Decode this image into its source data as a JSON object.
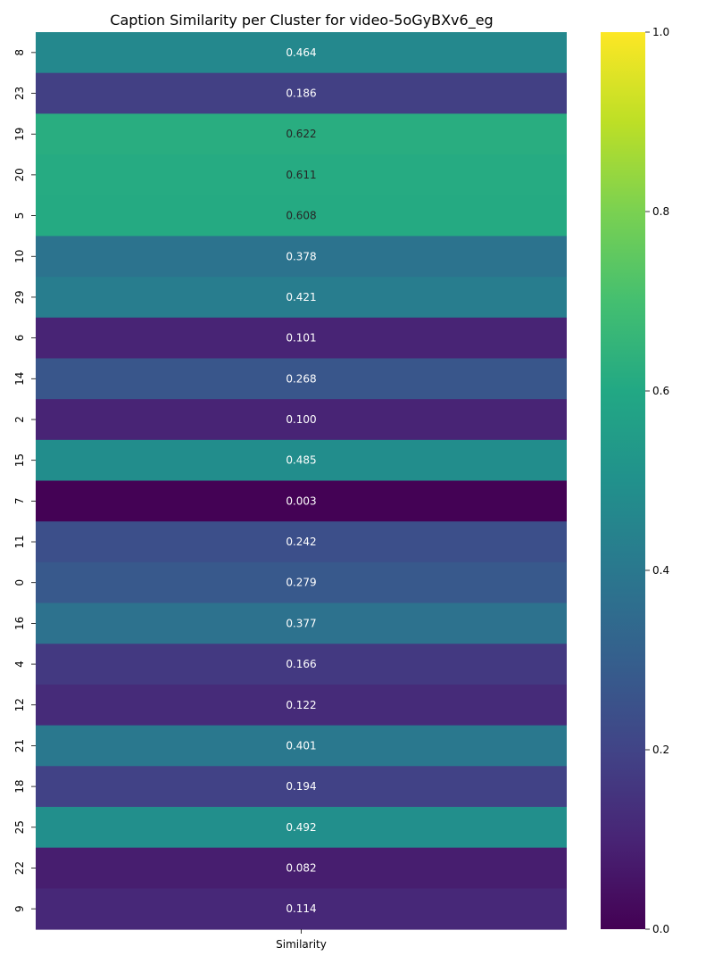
{
  "chart_data": {
    "type": "heatmap",
    "title": "Caption Similarity per Cluster for video-5oGyBXv6_eg",
    "xlabel": "",
    "ylabel": "",
    "columns": [
      "Similarity"
    ],
    "rows": [
      "8",
      "23",
      "19",
      "20",
      "5",
      "10",
      "29",
      "6",
      "14",
      "2",
      "15",
      "7",
      "11",
      "0",
      "16",
      "4",
      "12",
      "21",
      "18",
      "25",
      "22",
      "9"
    ],
    "values": [
      0.464,
      0.186,
      0.622,
      0.611,
      0.608,
      0.378,
      0.421,
      0.101,
      0.268,
      0.1,
      0.485,
      0.003,
      0.242,
      0.279,
      0.377,
      0.166,
      0.122,
      0.401,
      0.194,
      0.492,
      0.082,
      0.114
    ],
    "value_labels": [
      "0.464",
      "0.186",
      "0.622",
      "0.611",
      "0.608",
      "0.378",
      "0.421",
      "0.101",
      "0.268",
      "0.100",
      "0.485",
      "0.003",
      "0.242",
      "0.279",
      "0.377",
      "0.166",
      "0.122",
      "0.401",
      "0.194",
      "0.492",
      "0.082",
      "0.114"
    ],
    "colormap": "viridis",
    "colorbar": {
      "vmin": 0.0,
      "vmax": 1.0,
      "ticks": [
        0.0,
        0.2,
        0.4,
        0.6,
        0.8,
        1.0
      ],
      "tick_labels": [
        "0.0",
        "0.2",
        "0.4",
        "0.6",
        "0.8",
        "1.0"
      ]
    },
    "grid": false,
    "legend": "colorbar right"
  }
}
